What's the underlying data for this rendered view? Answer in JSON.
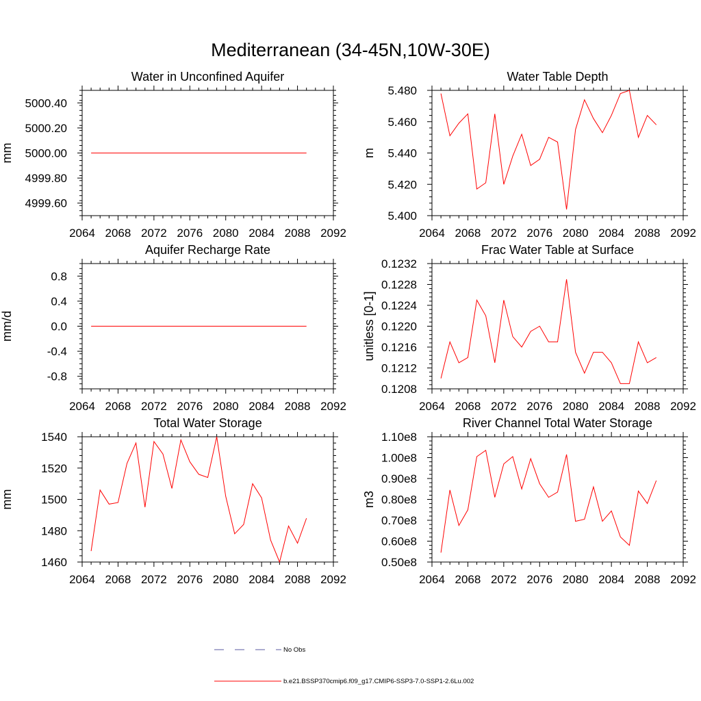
{
  "title": "Mediterranean (34-45N,10W-30E)",
  "chart_data": [
    {
      "type": "line",
      "title": "Water in Unconfined Aquifer",
      "xlabel": "",
      "ylabel": "mm",
      "xlim": [
        2064,
        2092
      ],
      "ylim": [
        4999.5,
        5000.5
      ],
      "xticks": [
        2064,
        2068,
        2072,
        2076,
        2080,
        2084,
        2088,
        2092
      ],
      "yticks": [
        4999.6,
        4999.8,
        5000.0,
        5000.2,
        5000.4
      ],
      "ytick_labels": [
        "4999.60",
        "4999.80",
        "5000.00",
        "5000.20",
        "5000.40"
      ],
      "yminor_step": 0.04,
      "x": [
        2065,
        2066,
        2067,
        2068,
        2069,
        2070,
        2071,
        2072,
        2073,
        2074,
        2075,
        2076,
        2077,
        2078,
        2079,
        2080,
        2081,
        2082,
        2083,
        2084,
        2085,
        2086,
        2087,
        2088,
        2089
      ],
      "series": [
        {
          "color": "#ff0000",
          "values": [
            5000,
            5000,
            5000,
            5000,
            5000,
            5000,
            5000,
            5000,
            5000,
            5000,
            5000,
            5000,
            5000,
            5000,
            5000,
            5000,
            5000,
            5000,
            5000,
            5000,
            5000,
            5000,
            5000,
            5000,
            5000
          ]
        }
      ]
    },
    {
      "type": "line",
      "title": "Water Table Depth",
      "xlabel": "",
      "ylabel": "m",
      "xlim": [
        2064,
        2092
      ],
      "ylim": [
        5.4,
        5.48
      ],
      "xticks": [
        2064,
        2068,
        2072,
        2076,
        2080,
        2084,
        2088,
        2092
      ],
      "yticks": [
        5.4,
        5.42,
        5.44,
        5.46,
        5.48
      ],
      "ytick_labels": [
        "5.400",
        "5.420",
        "5.440",
        "5.460",
        "5.480"
      ],
      "yminor_step": 0.004,
      "x": [
        2065,
        2066,
        2067,
        2068,
        2069,
        2070,
        2071,
        2072,
        2073,
        2074,
        2075,
        2076,
        2077,
        2078,
        2079,
        2080,
        2081,
        2082,
        2083,
        2084,
        2085,
        2086,
        2087,
        2088,
        2089
      ],
      "series": [
        {
          "color": "#ff0000",
          "values": [
            5.478,
            5.451,
            5.459,
            5.465,
            5.417,
            5.421,
            5.465,
            5.42,
            5.438,
            5.452,
            5.432,
            5.436,
            5.45,
            5.447,
            5.404,
            5.455,
            5.474,
            5.462,
            5.453,
            5.464,
            5.478,
            5.48,
            5.45,
            5.464,
            5.458
          ]
        }
      ]
    },
    {
      "type": "line",
      "title": "Aquifer Recharge Rate",
      "xlabel": "",
      "ylabel": "mm/d",
      "xlim": [
        2064,
        2092
      ],
      "ylim": [
        -1.0,
        1.0
      ],
      "xticks": [
        2064,
        2068,
        2072,
        2076,
        2080,
        2084,
        2088,
        2092
      ],
      "yticks": [
        -0.8,
        -0.4,
        0.0,
        0.4,
        0.8
      ],
      "ytick_labels": [
        "-0.8",
        "-0.4",
        "0.0",
        "0.4",
        "0.8"
      ],
      "yminor_step": 0.08,
      "x": [
        2065,
        2066,
        2067,
        2068,
        2069,
        2070,
        2071,
        2072,
        2073,
        2074,
        2075,
        2076,
        2077,
        2078,
        2079,
        2080,
        2081,
        2082,
        2083,
        2084,
        2085,
        2086,
        2087,
        2088,
        2089
      ],
      "series": [
        {
          "color": "#ff0000",
          "values": [
            0,
            0,
            0,
            0,
            0,
            0,
            0,
            0,
            0,
            0,
            0,
            0,
            0,
            0,
            0,
            0,
            0,
            0,
            0,
            0,
            0,
            0,
            0,
            0,
            0
          ]
        }
      ]
    },
    {
      "type": "line",
      "title": "Frac Water Table at Surface",
      "xlabel": "",
      "ylabel": "unitless [0-1]",
      "xlim": [
        2064,
        2092
      ],
      "ylim": [
        0.1208,
        0.1232
      ],
      "xticks": [
        2064,
        2068,
        2072,
        2076,
        2080,
        2084,
        2088,
        2092
      ],
      "yticks": [
        0.1208,
        0.1212,
        0.1216,
        0.122,
        0.1224,
        0.1228,
        0.1232
      ],
      "ytick_labels": [
        "0.1208",
        "0.1212",
        "0.1216",
        "0.1220",
        "0.1224",
        "0.1228",
        "0.1232"
      ],
      "yminor_step": 8e-05,
      "x": [
        2065,
        2066,
        2067,
        2068,
        2069,
        2070,
        2071,
        2072,
        2073,
        2074,
        2075,
        2076,
        2077,
        2078,
        2079,
        2080,
        2081,
        2082,
        2083,
        2084,
        2085,
        2086,
        2087,
        2088,
        2089
      ],
      "series": [
        {
          "color": "#ff0000",
          "values": [
            0.121,
            0.1217,
            0.1213,
            0.1214,
            0.1225,
            0.1222,
            0.1213,
            0.1225,
            0.1218,
            0.1216,
            0.1219,
            0.122,
            0.1217,
            0.1217,
            0.1229,
            0.1215,
            0.1211,
            0.1215,
            0.1215,
            0.1213,
            0.1209,
            0.1209,
            0.1217,
            0.1213,
            0.1214
          ]
        }
      ]
    },
    {
      "type": "line",
      "title": "Total Water Storage",
      "xlabel": "",
      "ylabel": "mm",
      "xlim": [
        2064,
        2092
      ],
      "ylim": [
        1460,
        1540
      ],
      "xticks": [
        2064,
        2068,
        2072,
        2076,
        2080,
        2084,
        2088,
        2092
      ],
      "yticks": [
        1460,
        1480,
        1500,
        1520,
        1540
      ],
      "ytick_labels": [
        "1460",
        "1480",
        "1500",
        "1520",
        "1540"
      ],
      "yminor_step": 4,
      "x": [
        2065,
        2066,
        2067,
        2068,
        2069,
        2070,
        2071,
        2072,
        2073,
        2074,
        2075,
        2076,
        2077,
        2078,
        2079,
        2080,
        2081,
        2082,
        2083,
        2084,
        2085,
        2086,
        2087,
        2088,
        2089
      ],
      "series": [
        {
          "color": "#ff0000",
          "values": [
            1467,
            1506,
            1497,
            1498,
            1523,
            1536,
            1495,
            1537,
            1529,
            1507,
            1538,
            1524,
            1516,
            1514,
            1540,
            1502,
            1478,
            1484,
            1510,
            1501,
            1474,
            1460,
            1483,
            1472,
            1488
          ]
        }
      ]
    },
    {
      "type": "line",
      "title": "River Channel Total Water Storage",
      "xlabel": "",
      "ylabel": "m3",
      "xlim": [
        2064,
        2092
      ],
      "ylim": [
        50000000,
        110000000
      ],
      "xticks": [
        2064,
        2068,
        2072,
        2076,
        2080,
        2084,
        2088,
        2092
      ],
      "yticks": [
        50000000,
        60000000,
        70000000,
        80000000,
        90000000,
        100000000,
        110000000
      ],
      "ytick_labels": [
        "0.50e8",
        "0.60e8",
        "0.70e8",
        "0.80e8",
        "0.90e8",
        "1.00e8",
        "1.10e8"
      ],
      "yminor_step": 2000000,
      "x": [
        2065,
        2066,
        2067,
        2068,
        2069,
        2070,
        2071,
        2072,
        2073,
        2074,
        2075,
        2076,
        2077,
        2078,
        2079,
        2080,
        2081,
        2082,
        2083,
        2084,
        2085,
        2086,
        2087,
        2088,
        2089
      ],
      "series": [
        {
          "color": "#ff0000",
          "values": [
            54500000,
            84500000,
            67500000,
            75000000,
            100500000,
            103500000,
            81000000,
            97000000,
            100500000,
            85000000,
            99500000,
            87500000,
            81000000,
            83500000,
            101500000,
            69500000,
            70500000,
            86000000,
            69500000,
            74500000,
            62000000,
            58000000,
            84000000,
            78000000,
            89000000
          ]
        }
      ]
    }
  ],
  "legend": [
    {
      "label": "No Obs",
      "color": "#5a5aa0",
      "style": "dashed"
    },
    {
      "label": "b.e21.BSSP370cmip6.f09_g17.CMIP6-SSP3-7.0-SSP1-2.6Lu.002",
      "color": "#ff0000",
      "style": "solid"
    }
  ]
}
